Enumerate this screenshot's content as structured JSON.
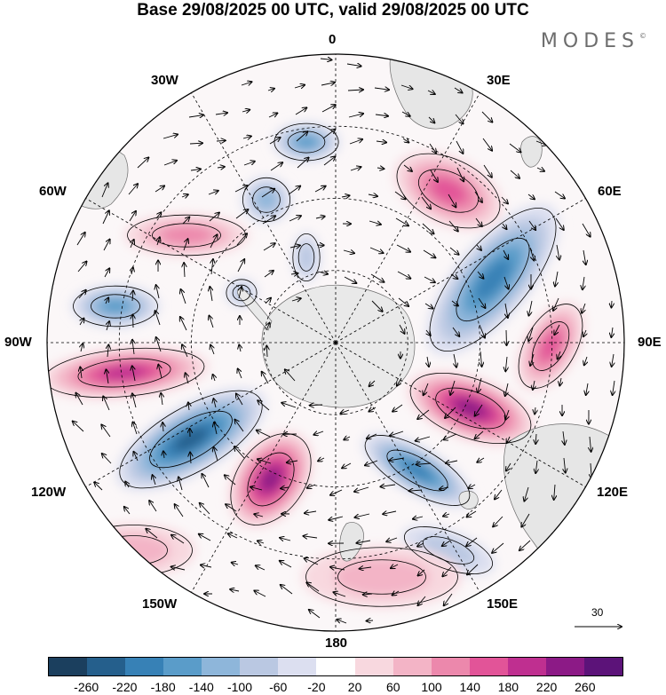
{
  "title": "Base 29/08/2025 00 UTC, valid 29/08/2025 00 UTC",
  "brand": {
    "name": "MODES",
    "mark": "©"
  },
  "projection": "south-polar-stereographic",
  "longitude_labels": [
    "0",
    "30E",
    "60E",
    "90E",
    "120E",
    "150E",
    "180",
    "150W",
    "120W",
    "90W",
    "60W",
    "30W"
  ],
  "vector_reference": {
    "value": "30"
  },
  "colorbar": {
    "tick_labels": [
      "-260",
      "-220",
      "-180",
      "-140",
      "-100",
      "-60",
      "-20",
      "20",
      "60",
      "100",
      "140",
      "180",
      "220",
      "260"
    ],
    "colors": [
      "#1b3f5e",
      "#255f8c",
      "#3781b6",
      "#5a9cc9",
      "#8eb6da",
      "#bac8e2",
      "#dcdff0",
      "#ffffff",
      "#f8d8df",
      "#f3b4c6",
      "#ec88ac",
      "#e25498",
      "#bf2f90",
      "#8c1a86",
      "#5c1379"
    ]
  },
  "anomalies": [
    {
      "sign": "negative",
      "value": -230
    },
    {
      "sign": "negative",
      "value": -200
    },
    {
      "sign": "negative",
      "value": -180
    },
    {
      "sign": "negative",
      "value": -160
    },
    {
      "sign": "negative",
      "value": -140
    },
    {
      "sign": "negative",
      "value": -120
    },
    {
      "sign": "negative",
      "value": -80
    },
    {
      "sign": "negative",
      "value": -80
    },
    {
      "sign": "negative",
      "value": -60
    },
    {
      "sign": "positive",
      "value": 250
    },
    {
      "sign": "positive",
      "value": 230
    },
    {
      "sign": "positive",
      "value": 190
    },
    {
      "sign": "positive",
      "value": 170
    },
    {
      "sign": "positive",
      "value": 160
    },
    {
      "sign": "positive",
      "value": 120
    },
    {
      "sign": "positive",
      "value": 80
    },
    {
      "sign": "positive",
      "value": 60
    }
  ]
}
